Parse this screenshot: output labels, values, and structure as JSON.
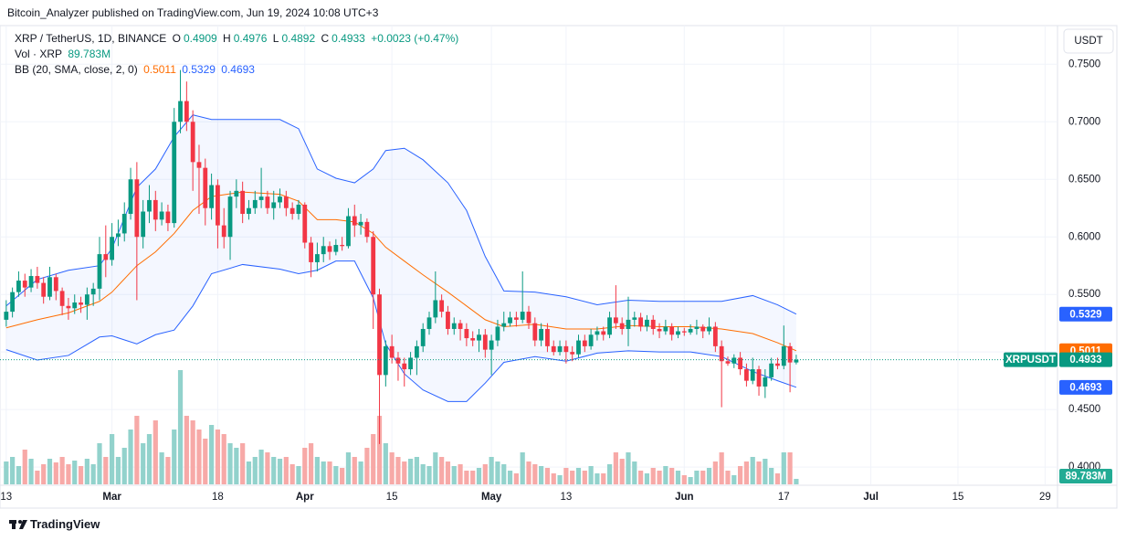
{
  "header": {
    "publisher": "Bitcoin_Analyzer published on TradingView.com, Jun 19, 2024 10:08 UTC+3"
  },
  "footer": {
    "brand": "TradingView"
  },
  "chart_data": {
    "type": "candlestick",
    "symbol": "XRP / TetherUS, 1D, BINANCE",
    "ticker": "XRPUSDT",
    "currency": "USDT",
    "legend_keys": {
      "open": "O",
      "high": "H",
      "low": "L",
      "close": "C"
    },
    "change_label": "+0.0023 (+0.47%)",
    "up_color": "#089981",
    "down_color": "#f23645",
    "x": [
      "2024-02-13",
      "2024-02-14",
      "2024-02-15",
      "2024-02-16",
      "2024-02-17",
      "2024-02-18",
      "2024-02-19",
      "2024-02-20",
      "2024-02-21",
      "2024-02-22",
      "2024-02-23",
      "2024-02-24",
      "2024-02-25",
      "2024-02-26",
      "2024-02-27",
      "2024-02-28",
      "2024-02-29",
      "2024-03-01",
      "2024-03-02",
      "2024-03-03",
      "2024-03-04",
      "2024-03-05",
      "2024-03-06",
      "2024-03-07",
      "2024-03-08",
      "2024-03-09",
      "2024-03-10",
      "2024-03-11",
      "2024-03-12",
      "2024-03-13",
      "2024-03-14",
      "2024-03-15",
      "2024-03-16",
      "2024-03-17",
      "2024-03-18",
      "2024-03-19",
      "2024-03-20",
      "2024-03-21",
      "2024-03-22",
      "2024-03-23",
      "2024-03-24",
      "2024-03-25",
      "2024-03-26",
      "2024-03-27",
      "2024-03-28",
      "2024-03-29",
      "2024-03-30",
      "2024-03-31",
      "2024-04-01",
      "2024-04-02",
      "2024-04-03",
      "2024-04-04",
      "2024-04-05",
      "2024-04-06",
      "2024-04-07",
      "2024-04-08",
      "2024-04-09",
      "2024-04-10",
      "2024-04-11",
      "2024-04-12",
      "2024-04-13",
      "2024-04-14",
      "2024-04-15",
      "2024-04-16",
      "2024-04-17",
      "2024-04-18",
      "2024-04-19",
      "2024-04-20",
      "2024-04-21",
      "2024-04-22",
      "2024-04-23",
      "2024-04-24",
      "2024-04-25",
      "2024-04-26",
      "2024-04-27",
      "2024-04-28",
      "2024-04-29",
      "2024-04-30",
      "2024-05-01",
      "2024-05-02",
      "2024-05-03",
      "2024-05-04",
      "2024-05-05",
      "2024-05-06",
      "2024-05-07",
      "2024-05-08",
      "2024-05-09",
      "2024-05-10",
      "2024-05-11",
      "2024-05-12",
      "2024-05-13",
      "2024-05-14",
      "2024-05-15",
      "2024-05-16",
      "2024-05-17",
      "2024-05-18",
      "2024-05-19",
      "2024-05-20",
      "2024-05-21",
      "2024-05-22",
      "2024-05-23",
      "2024-05-24",
      "2024-05-25",
      "2024-05-26",
      "2024-05-27",
      "2024-05-28",
      "2024-05-29",
      "2024-05-30",
      "2024-05-31",
      "2024-06-01",
      "2024-06-02",
      "2024-06-03",
      "2024-06-04",
      "2024-06-05",
      "2024-06-06",
      "2024-06-07",
      "2024-06-08",
      "2024-06-09",
      "2024-06-10",
      "2024-06-11",
      "2024-06-12",
      "2024-06-13",
      "2024-06-14",
      "2024-06-15",
      "2024-06-16",
      "2024-06-17",
      "2024-06-18",
      "2024-06-19"
    ],
    "open": [
      0.528,
      0.535,
      0.552,
      0.562,
      0.556,
      0.566,
      0.56,
      0.548,
      0.565,
      0.553,
      0.54,
      0.538,
      0.543,
      0.541,
      0.55,
      0.555,
      0.585,
      0.58,
      0.6,
      0.603,
      0.62,
      0.65,
      0.6,
      0.622,
      0.632,
      0.615,
      0.622,
      0.612,
      0.7,
      0.718,
      0.7,
      0.665,
      0.66,
      0.625,
      0.645,
      0.61,
      0.6,
      0.635,
      0.64,
      0.62,
      0.625,
      0.632,
      0.635,
      0.625,
      0.63,
      0.635,
      0.625,
      0.62,
      0.628,
      0.595,
      0.578,
      0.585,
      0.592,
      0.587,
      0.593,
      0.592,
      0.618,
      0.61,
      0.613,
      0.6,
      0.55,
      0.48,
      0.505,
      0.495,
      0.49,
      0.485,
      0.495,
      0.505,
      0.52,
      0.53,
      0.545,
      0.535,
      0.52,
      0.525,
      0.52,
      0.512,
      0.51,
      0.515,
      0.502,
      0.51,
      0.522,
      0.525,
      0.53,
      0.528,
      0.535,
      0.525,
      0.51,
      0.52,
      0.505,
      0.5,
      0.505,
      0.5,
      0.498,
      0.51,
      0.505,
      0.515,
      0.518,
      0.515,
      0.53,
      0.525,
      0.52,
      0.528,
      0.53,
      0.522,
      0.528,
      0.52,
      0.518,
      0.522,
      0.515,
      0.518,
      0.517,
      0.52,
      0.522,
      0.518,
      0.522,
      0.505,
      0.492,
      0.49,
      0.495,
      0.485,
      0.475,
      0.485,
      0.47,
      0.478,
      0.49,
      0.488,
      0.505,
      0.4909
    ],
    "high": [
      0.545,
      0.556,
      0.57,
      0.568,
      0.572,
      0.574,
      0.565,
      0.574,
      0.568,
      0.556,
      0.547,
      0.55,
      0.548,
      0.556,
      0.56,
      0.6,
      0.61,
      0.612,
      0.615,
      0.63,
      0.66,
      0.665,
      0.632,
      0.645,
      0.64,
      0.63,
      0.628,
      0.712,
      0.745,
      0.735,
      0.71,
      0.68,
      0.668,
      0.655,
      0.65,
      0.625,
      0.64,
      0.65,
      0.648,
      0.632,
      0.64,
      0.66,
      0.64,
      0.64,
      0.642,
      0.64,
      0.63,
      0.632,
      0.63,
      0.6,
      0.595,
      0.6,
      0.596,
      0.598,
      0.6,
      0.625,
      0.628,
      0.62,
      0.616,
      0.605,
      0.555,
      0.51,
      0.515,
      0.5,
      0.495,
      0.5,
      0.51,
      0.525,
      0.535,
      0.57,
      0.55,
      0.54,
      0.53,
      0.528,
      0.525,
      0.518,
      0.52,
      0.52,
      0.515,
      0.528,
      0.535,
      0.535,
      0.535,
      0.57,
      0.54,
      0.53,
      0.525,
      0.525,
      0.51,
      0.51,
      0.51,
      0.505,
      0.515,
      0.515,
      0.52,
      0.522,
      0.522,
      0.535,
      0.558,
      0.53,
      0.548,
      0.535,
      0.534,
      0.532,
      0.532,
      0.525,
      0.528,
      0.525,
      0.522,
      0.521,
      0.524,
      0.528,
      0.524,
      0.53,
      0.526,
      0.51,
      0.496,
      0.498,
      0.5,
      0.49,
      0.495,
      0.488,
      0.485,
      0.495,
      0.495,
      0.523,
      0.508,
      0.4976
    ],
    "low": [
      0.522,
      0.53,
      0.548,
      0.548,
      0.552,
      0.555,
      0.542,
      0.545,
      0.545,
      0.532,
      0.528,
      0.533,
      0.534,
      0.528,
      0.54,
      0.545,
      0.565,
      0.575,
      0.592,
      0.596,
      0.615,
      0.545,
      0.59,
      0.612,
      0.605,
      0.61,
      0.605,
      0.608,
      0.69,
      0.692,
      0.64,
      0.62,
      0.61,
      0.615,
      0.59,
      0.59,
      0.58,
      0.625,
      0.612,
      0.615,
      0.62,
      0.625,
      0.62,
      0.615,
      0.625,
      0.618,
      0.615,
      0.615,
      0.59,
      0.565,
      0.57,
      0.578,
      0.58,
      0.584,
      0.588,
      0.59,
      0.6,
      0.602,
      0.595,
      0.52,
      0.42,
      0.47,
      0.49,
      0.475,
      0.47,
      0.48,
      0.48,
      0.5,
      0.515,
      0.525,
      0.53,
      0.515,
      0.515,
      0.51,
      0.505,
      0.505,
      0.5,
      0.495,
      0.48,
      0.505,
      0.518,
      0.522,
      0.522,
      0.525,
      0.52,
      0.505,
      0.505,
      0.5,
      0.497,
      0.497,
      0.49,
      0.492,
      0.495,
      0.5,
      0.502,
      0.51,
      0.51,
      0.512,
      0.52,
      0.515,
      0.505,
      0.522,
      0.518,
      0.518,
      0.515,
      0.512,
      0.515,
      0.51,
      0.512,
      0.514,
      0.515,
      0.515,
      0.512,
      0.515,
      0.5,
      0.452,
      0.488,
      0.486,
      0.48,
      0.47,
      0.472,
      0.462,
      0.46,
      0.475,
      0.485,
      0.485,
      0.465,
      0.4892
    ],
    "close": [
      0.535,
      0.552,
      0.562,
      0.556,
      0.566,
      0.56,
      0.548,
      0.565,
      0.553,
      0.54,
      0.538,
      0.543,
      0.541,
      0.55,
      0.555,
      0.585,
      0.58,
      0.6,
      0.603,
      0.62,
      0.65,
      0.6,
      0.622,
      0.632,
      0.615,
      0.622,
      0.612,
      0.7,
      0.718,
      0.7,
      0.665,
      0.66,
      0.625,
      0.645,
      0.61,
      0.6,
      0.635,
      0.64,
      0.62,
      0.625,
      0.632,
      0.635,
      0.625,
      0.63,
      0.635,
      0.625,
      0.62,
      0.628,
      0.595,
      0.578,
      0.585,
      0.592,
      0.587,
      0.593,
      0.592,
      0.618,
      0.61,
      0.613,
      0.6,
      0.55,
      0.48,
      0.505,
      0.495,
      0.49,
      0.485,
      0.495,
      0.505,
      0.52,
      0.53,
      0.545,
      0.535,
      0.52,
      0.525,
      0.52,
      0.512,
      0.51,
      0.515,
      0.502,
      0.51,
      0.522,
      0.525,
      0.53,
      0.528,
      0.535,
      0.525,
      0.51,
      0.52,
      0.505,
      0.5,
      0.505,
      0.5,
      0.498,
      0.51,
      0.505,
      0.515,
      0.518,
      0.515,
      0.53,
      0.525,
      0.52,
      0.528,
      0.53,
      0.522,
      0.528,
      0.52,
      0.518,
      0.522,
      0.515,
      0.518,
      0.517,
      0.52,
      0.522,
      0.518,
      0.522,
      0.505,
      0.492,
      0.49,
      0.495,
      0.485,
      0.475,
      0.485,
      0.47,
      0.478,
      0.49,
      0.488,
      0.505,
      0.4909,
      0.4933
    ],
    "volume": {
      "name": "Vol · XRP",
      "up_color": "#92d2cc",
      "down_color": "#f7a9a7",
      "tag_color": "#22ab94",
      "last_value_label": "89.783M",
      "values": [
        375,
        450,
        300,
        570,
        420,
        225,
        330,
        420,
        360,
        450,
        330,
        390,
        300,
        420,
        330,
        675,
        450,
        825,
        450,
        600,
        900,
        1125,
        675,
        825,
        1050,
        525,
        450,
        900,
        1875,
        1125,
        1050,
        900,
        750,
        975,
        900,
        825,
        675,
        600,
        675,
        375,
        450,
        570,
        525,
        450,
        420,
        450,
        330,
        300,
        600,
        675,
        450,
        375,
        375,
        300,
        270,
        525,
        450,
        375,
        600,
        825,
        1125,
        675,
        525,
        450,
        375,
        420,
        450,
        330,
        300,
        525,
        450,
        375,
        300,
        330,
        225,
        225,
        270,
        330,
        450,
        375,
        330,
        225,
        180,
        525,
        375,
        330,
        300,
        270,
        180,
        150,
        270,
        225,
        270,
        225,
        300,
        180,
        180,
        330,
        525,
        420,
        525,
        375,
        225,
        180,
        270,
        225,
        300,
        270,
        225,
        150,
        120,
        225,
        225,
        270,
        375,
        525,
        225,
        150,
        300,
        375,
        450,
        375,
        420,
        270,
        180,
        525,
        525,
        89.783
      ]
    },
    "bands": {
      "title": "BB (20, SMA, close, 2, 0)",
      "fill_color": "#2962ff",
      "x": [
        "2024-02-13",
        "2024-02-18",
        "2024-02-23",
        "2024-02-28",
        "2024-03-01",
        "2024-03-05",
        "2024-03-08",
        "2024-03-11",
        "2024-03-14",
        "2024-03-17",
        "2024-03-22",
        "2024-03-28",
        "2024-03-31",
        "2024-04-03",
        "2024-04-06",
        "2024-04-09",
        "2024-04-12",
        "2024-04-14",
        "2024-04-17",
        "2024-04-20",
        "2024-04-24",
        "2024-04-27",
        "2024-04-30",
        "2024-05-03",
        "2024-05-08",
        "2024-05-13",
        "2024-05-18",
        "2024-05-23",
        "2024-05-28",
        "2024-06-02",
        "2024-06-07",
        "2024-06-12",
        "2024-06-16",
        "2024-06-19"
      ],
      "basis": {
        "color": "#ff6d00",
        "values": [
          0.521,
          0.528,
          0.534,
          0.544,
          0.552,
          0.575,
          0.587,
          0.603,
          0.623,
          0.635,
          0.639,
          0.637,
          0.631,
          0.615,
          0.615,
          0.613,
          0.603,
          0.591,
          0.579,
          0.567,
          0.552,
          0.54,
          0.528,
          0.522,
          0.524,
          0.52,
          0.52,
          0.523,
          0.522,
          0.522,
          0.52,
          0.516,
          0.508,
          0.5011
        ]
      },
      "upper": {
        "color": "#2962ff",
        "values": [
          0.54,
          0.563,
          0.571,
          0.575,
          0.59,
          0.643,
          0.659,
          0.687,
          0.706,
          0.702,
          0.702,
          0.702,
          0.694,
          0.659,
          0.651,
          0.647,
          0.659,
          0.675,
          0.677,
          0.667,
          0.647,
          0.623,
          0.583,
          0.553,
          0.552,
          0.548,
          0.541,
          0.545,
          0.544,
          0.544,
          0.544,
          0.549,
          0.541,
          0.5329
        ]
      },
      "lower": {
        "color": "#2962ff",
        "values": [
          0.502,
          0.493,
          0.497,
          0.513,
          0.514,
          0.507,
          0.515,
          0.519,
          0.54,
          0.568,
          0.576,
          0.572,
          0.568,
          0.571,
          0.579,
          0.579,
          0.547,
          0.507,
          0.481,
          0.467,
          0.457,
          0.457,
          0.473,
          0.491,
          0.496,
          0.492,
          0.499,
          0.501,
          0.5,
          0.5,
          0.496,
          0.483,
          0.475,
          0.4693
        ]
      }
    },
    "xlim": [
      "2024-02-12",
      "2024-07-31"
    ],
    "xticks": [
      {
        "value": "2024-02-13",
        "label": "13"
      },
      {
        "value": "2024-03-01",
        "label": "Mar"
      },
      {
        "value": "2024-03-18",
        "label": "18"
      },
      {
        "value": "2024-04-01",
        "label": "Apr"
      },
      {
        "value": "2024-04-15",
        "label": "15"
      },
      {
        "value": "2024-05-01",
        "label": "May"
      },
      {
        "value": "2024-05-13",
        "label": "13"
      },
      {
        "value": "2024-06-01",
        "label": "Jun"
      },
      {
        "value": "2024-06-17",
        "label": "17"
      },
      {
        "value": "2024-07-01",
        "label": "Jul"
      },
      {
        "value": "2024-07-15",
        "label": "15"
      },
      {
        "value": "2024-07-29",
        "label": "29"
      }
    ],
    "ylim": [
      0.385,
      0.782
    ],
    "yticks": [
      {
        "value": 0.4,
        "label": "0.4000"
      },
      {
        "value": 0.45,
        "label": "0.4500"
      },
      {
        "value": 0.5,
        "label": "0.5000"
      },
      {
        "value": 0.55,
        "label": "0.5500"
      },
      {
        "value": 0.6,
        "label": "0.6000"
      },
      {
        "value": 0.65,
        "label": "0.6500"
      },
      {
        "value": 0.7,
        "label": "0.7000"
      },
      {
        "value": 0.75,
        "label": "0.7500"
      }
    ],
    "grid": true,
    "grid_color": "#f0f3fa"
  }
}
